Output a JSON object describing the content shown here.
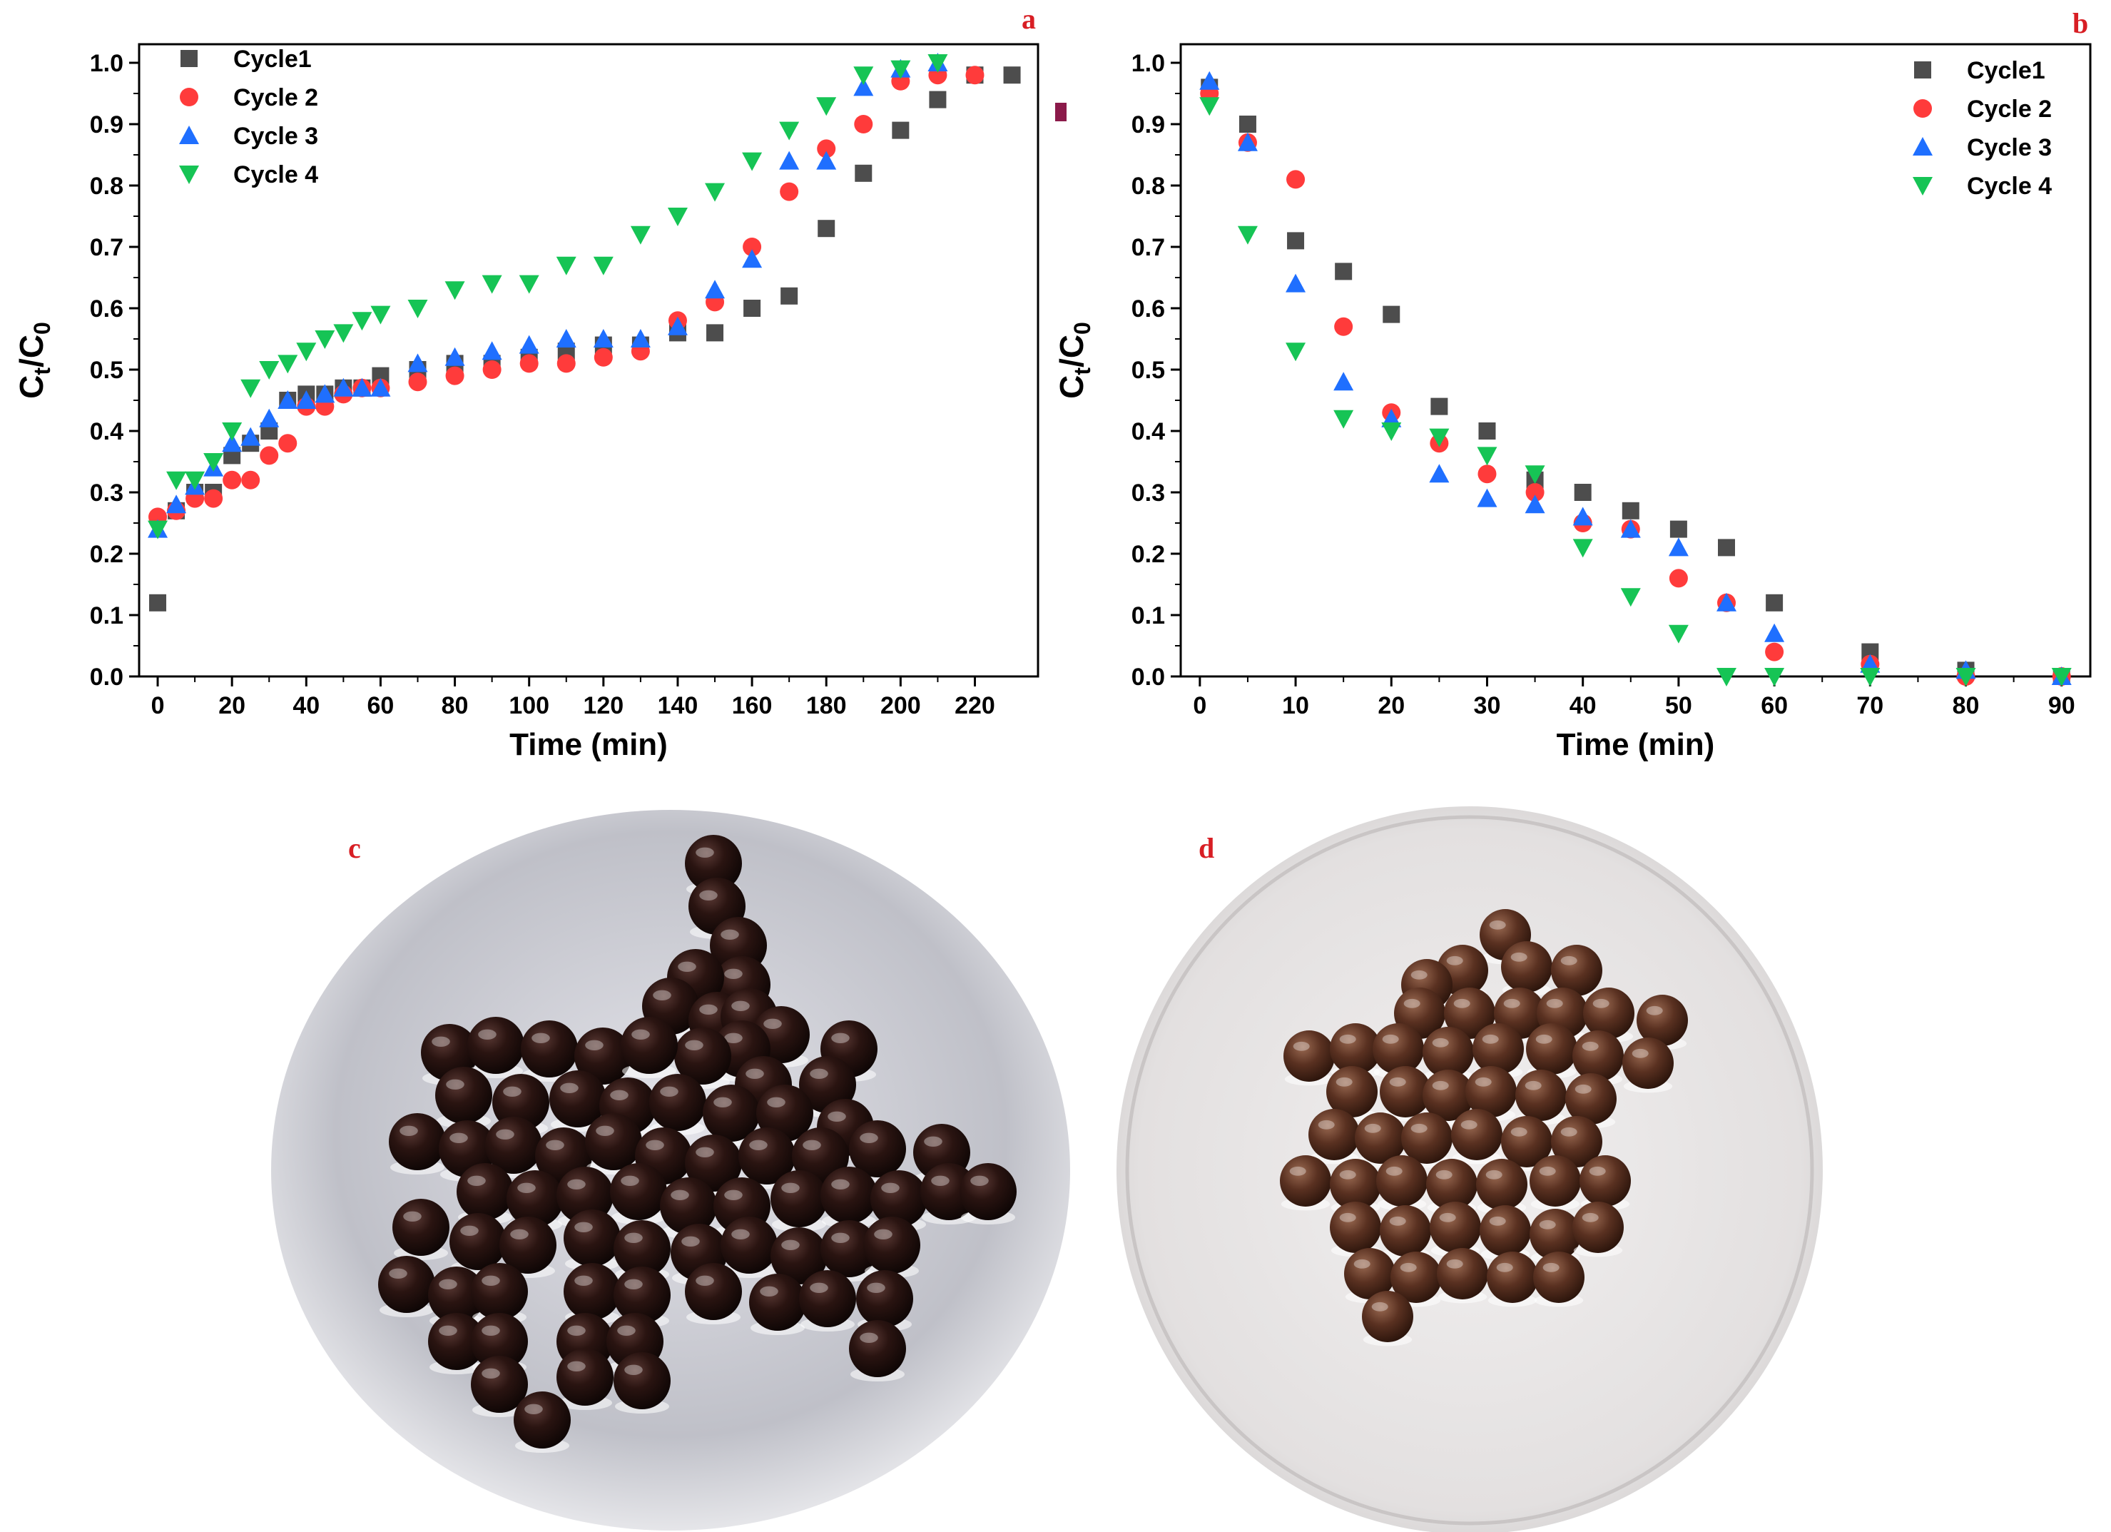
{
  "colors": {
    "panel_letter": "#d81e24",
    "series": [
      "#4d4d4d",
      "#ff3b3b",
      "#1f6fff",
      "#16c455"
    ]
  },
  "panel_letters": {
    "a": "a",
    "b": "b",
    "c": "c",
    "d": "d"
  },
  "photos": {
    "c": {
      "bead_color": "#2a1411"
    },
    "d": {
      "bead_color": "#5a3121"
    }
  },
  "chart_data": [
    {
      "panel": "a",
      "type": "scatter",
      "title": "",
      "xlabel": "Time (min)",
      "ylabel_main": "C",
      "ylabel_sub1": "t",
      "ylabel_mid": "/C",
      "ylabel_sub2": "0",
      "xlim": [
        -5,
        237
      ],
      "ylim": [
        0,
        1.0
      ],
      "xticks": [
        0,
        20,
        40,
        60,
        80,
        100,
        120,
        140,
        160,
        180,
        200,
        220
      ],
      "yticks": [
        "0.0",
        "0.1",
        "0.2",
        "0.3",
        "0.4",
        "0.5",
        "0.6",
        "0.7",
        "0.8",
        "0.9",
        "1.0"
      ],
      "legend_position": "top-left",
      "series": [
        {
          "name": "Cycle1",
          "marker": "square",
          "x": [
            0,
            5,
            10,
            15,
            20,
            25,
            30,
            35,
            40,
            45,
            50,
            55,
            60,
            70,
            80,
            90,
            100,
            110,
            120,
            130,
            140,
            150,
            160,
            170,
            180,
            190,
            200,
            210,
            220,
            230
          ],
          "y": [
            0.12,
            0.27,
            0.3,
            0.3,
            0.36,
            0.38,
            0.4,
            0.45,
            0.46,
            0.46,
            0.47,
            0.47,
            0.49,
            0.5,
            0.51,
            0.51,
            0.52,
            0.53,
            0.54,
            0.54,
            0.56,
            0.56,
            0.6,
            0.62,
            0.73,
            0.82,
            0.89,
            0.94,
            0.98,
            0.98
          ]
        },
        {
          "name": "Cycle 2",
          "marker": "circle",
          "x": [
            0,
            5,
            10,
            15,
            20,
            25,
            30,
            35,
            40,
            45,
            50,
            55,
            60,
            70,
            80,
            90,
            100,
            110,
            120,
            130,
            140,
            150,
            160,
            170,
            180,
            190,
            200,
            210,
            220
          ],
          "y": [
            0.26,
            0.27,
            0.29,
            0.29,
            0.32,
            0.32,
            0.36,
            0.38,
            0.44,
            0.44,
            0.46,
            0.47,
            0.47,
            0.48,
            0.49,
            0.5,
            0.51,
            0.51,
            0.52,
            0.53,
            0.58,
            0.61,
            0.7,
            0.79,
            0.86,
            0.9,
            0.97,
            0.98,
            0.98
          ]
        },
        {
          "name": "Cycle 3",
          "marker": "triangle-up",
          "x": [
            0,
            5,
            10,
            15,
            20,
            25,
            30,
            35,
            40,
            45,
            50,
            55,
            60,
            70,
            80,
            90,
            100,
            110,
            120,
            130,
            140,
            150,
            160,
            170,
            180,
            190,
            200,
            210
          ],
          "y": [
            0.24,
            0.28,
            0.31,
            0.34,
            0.38,
            0.39,
            0.42,
            0.45,
            0.45,
            0.46,
            0.47,
            0.47,
            0.47,
            0.51,
            0.52,
            0.53,
            0.54,
            0.55,
            0.55,
            0.55,
            0.57,
            0.63,
            0.68,
            0.84,
            0.84,
            0.96,
            0.99,
            1.0
          ]
        },
        {
          "name": "Cycle 4",
          "marker": "triangle-down",
          "x": [
            0,
            5,
            10,
            15,
            20,
            25,
            30,
            35,
            40,
            45,
            50,
            55,
            60,
            70,
            80,
            90,
            100,
            110,
            120,
            130,
            140,
            150,
            160,
            170,
            180,
            190,
            200,
            210
          ],
          "y": [
            0.24,
            0.32,
            0.32,
            0.35,
            0.4,
            0.47,
            0.5,
            0.51,
            0.53,
            0.55,
            0.56,
            0.58,
            0.59,
            0.6,
            0.63,
            0.64,
            0.64,
            0.67,
            0.67,
            0.72,
            0.75,
            0.79,
            0.84,
            0.89,
            0.93,
            0.98,
            0.99,
            1.0
          ]
        }
      ]
    },
    {
      "panel": "b",
      "type": "scatter",
      "title": "",
      "xlabel": "Time (min)",
      "ylabel_main": "C",
      "ylabel_sub1": "t",
      "ylabel_mid": "/C",
      "ylabel_sub2": "0",
      "xlim": [
        -2,
        93
      ],
      "ylim": [
        0,
        1.0
      ],
      "xticks": [
        0,
        10,
        20,
        30,
        40,
        50,
        60,
        70,
        80,
        90
      ],
      "yticks": [
        "0.0",
        "0.1",
        "0.2",
        "0.3",
        "0.4",
        "0.5",
        "0.6",
        "0.7",
        "0.8",
        "0.9",
        "1.0"
      ],
      "legend_position": "top-right",
      "series": [
        {
          "name": "Cycle1",
          "marker": "square",
          "x": [
            1,
            5,
            10,
            15,
            20,
            25,
            30,
            35,
            40,
            45,
            50,
            55,
            60,
            70,
            80,
            90
          ],
          "y": [
            0.96,
            0.9,
            0.71,
            0.66,
            0.59,
            0.44,
            0.4,
            0.32,
            0.3,
            0.27,
            0.24,
            0.21,
            0.12,
            0.04,
            0.01,
            0.0
          ]
        },
        {
          "name": "Cycle 2",
          "marker": "circle",
          "x": [
            1,
            5,
            10,
            15,
            20,
            25,
            30,
            35,
            40,
            45,
            50,
            55,
            60,
            70,
            80,
            90
          ],
          "y": [
            0.95,
            0.87,
            0.81,
            0.57,
            0.43,
            0.38,
            0.33,
            0.3,
            0.25,
            0.24,
            0.16,
            0.12,
            0.04,
            0.02,
            0.0,
            0.0
          ]
        },
        {
          "name": "Cycle 3",
          "marker": "triangle-up",
          "x": [
            1,
            5,
            10,
            15,
            20,
            25,
            30,
            35,
            40,
            45,
            50,
            55,
            60,
            70,
            80,
            90
          ],
          "y": [
            0.97,
            0.87,
            0.64,
            0.48,
            0.42,
            0.33,
            0.29,
            0.28,
            0.26,
            0.24,
            0.21,
            0.12,
            0.07,
            0.02,
            0.01,
            0.0
          ]
        },
        {
          "name": "Cycle 4",
          "marker": "triangle-down",
          "x": [
            1,
            5,
            10,
            15,
            20,
            25,
            30,
            35,
            40,
            45,
            50,
            55,
            60,
            70,
            80,
            90
          ],
          "y": [
            0.93,
            0.72,
            0.53,
            0.42,
            0.4,
            0.39,
            0.36,
            0.33,
            0.21,
            0.13,
            0.07,
            0.0,
            0.0,
            0.0,
            0.0,
            0.0
          ]
        }
      ]
    }
  ]
}
